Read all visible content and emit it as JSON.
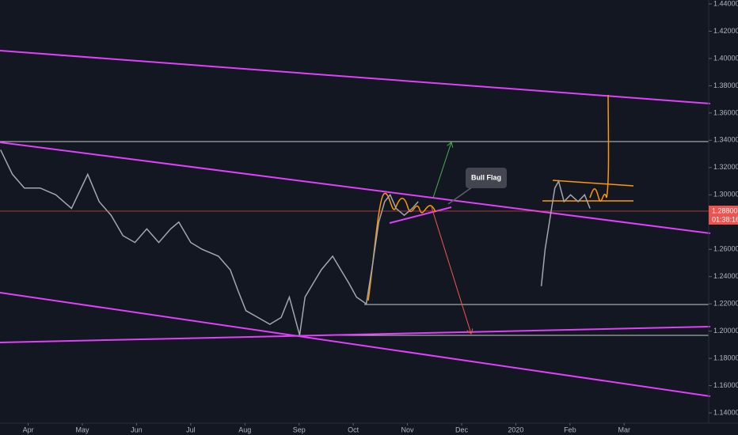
{
  "chart_data": {
    "type": "line",
    "x": [
      -0.51,
      -0.29,
      -0.07,
      0.22,
      0.51,
      0.8,
      1.1,
      1.31,
      1.53,
      1.75,
      1.97,
      2.19,
      2.41,
      2.63,
      2.78,
      3.0,
      3.21,
      3.51,
      3.73,
      3.87,
      4.02,
      4.24,
      4.46,
      4.67,
      4.82,
      5.01,
      5.11,
      5.26,
      5.41,
      5.62,
      5.77,
      5.92,
      6.06,
      6.24,
      6.36,
      6.47,
      6.58,
      6.68,
      6.79,
      6.94,
      7.09,
      7.2,
      null,
      9.47,
      9.54,
      9.64,
      9.72,
      9.79,
      9.89,
      10.01,
      10.15,
      10.27,
      10.37
    ],
    "series": [
      {
        "color": "#a3a6af",
        "values": [
          1.333,
          1.315,
          1.305,
          1.305,
          1.3,
          1.29,
          1.315,
          1.295,
          1.285,
          1.27,
          1.265,
          1.275,
          1.265,
          1.275,
          1.28,
          1.265,
          1.26,
          1.255,
          1.245,
          1.23,
          1.215,
          1.21,
          1.205,
          1.21,
          1.225,
          1.197,
          1.225,
          1.235,
          1.245,
          1.255,
          1.245,
          1.235,
          1.225,
          1.22,
          1.25,
          1.28,
          1.295,
          1.3,
          1.29,
          1.285,
          1.29,
          1.295,
          null,
          1.233,
          1.26,
          1.285,
          1.305,
          1.31,
          1.295,
          1.3,
          1.295,
          1.3,
          1.29
        ]
      }
    ],
    "xlim": [
      -0.52,
      12.56
    ],
    "xticks": [
      {
        "value": 0,
        "label": "Apr"
      },
      {
        "value": 1,
        "label": "May"
      },
      {
        "value": 2,
        "label": "Jun"
      },
      {
        "value": 3,
        "label": "Jul"
      },
      {
        "value": 4,
        "label": "Aug"
      },
      {
        "value": 5,
        "label": "Sep"
      },
      {
        "value": 6,
        "label": "Oct"
      },
      {
        "value": 7,
        "label": "Nov"
      },
      {
        "value": 8,
        "label": "Dec"
      },
      {
        "value": 9,
        "label": "2020"
      },
      {
        "value": 10,
        "label": "Feb"
      },
      {
        "value": 11,
        "label": "Mar"
      }
    ],
    "ylim": [
      1.1325,
      1.4429
    ],
    "yticks": [
      {
        "value": 1.44,
        "label": "1.44000"
      },
      {
        "value": 1.42,
        "label": "1.42000"
      },
      {
        "value": 1.4,
        "label": "1.40000"
      },
      {
        "value": 1.38,
        "label": "1.38000"
      },
      {
        "value": 1.36,
        "label": "1.36000"
      },
      {
        "value": 1.34,
        "label": "1.34000"
      },
      {
        "value": 1.32,
        "label": "1.32000"
      },
      {
        "value": 1.3,
        "label": "1.30000"
      },
      {
        "value": 1.26,
        "label": "1.26000"
      },
      {
        "value": 1.24,
        "label": "1.24000"
      },
      {
        "value": 1.22,
        "label": "1.22000"
      },
      {
        "value": 1.2,
        "label": "1.20000"
      },
      {
        "value": 1.18,
        "label": "1.18000"
      },
      {
        "value": 1.16,
        "label": "1.16000"
      },
      {
        "value": 1.14,
        "label": "1.14000"
      }
    ],
    "grid": false,
    "last_price": {
      "value": 1.288,
      "label": "1.28800"
    },
    "countdown": "01:38:16",
    "annotation": "Bull Flag"
  }
}
